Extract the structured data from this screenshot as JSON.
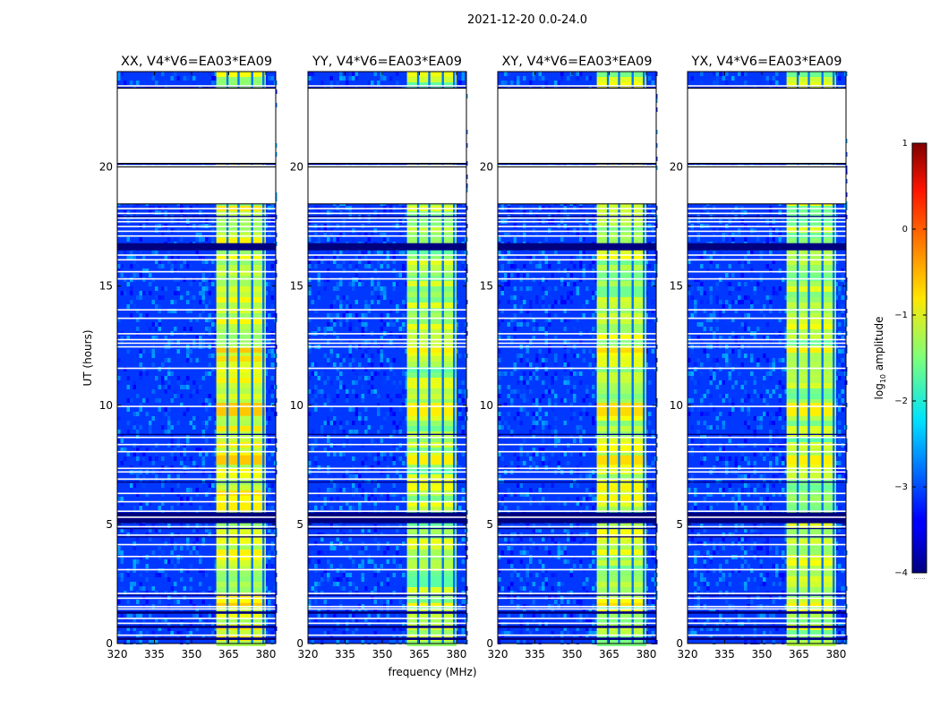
{
  "figure": {
    "suptitle": "2021-12-20 0.0-24.0",
    "xlabel": "frequency (MHz)",
    "ylabel": "UT (hours)",
    "colorbar_label": "log",
    "colorbar_sub": "10",
    "colorbar_suffix": " amplitude",
    "colorbar_dots": "......"
  },
  "chart_data": {
    "type": "heatmap",
    "panels": [
      {
        "title": "XX, V4*V6=EA03*EA09",
        "band_level": -1.1
      },
      {
        "title": "YY, V4*V6=EA03*EA09",
        "band_level": -1.3
      },
      {
        "title": "XY, V4*V6=EA03*EA09",
        "band_level": -1.2
      },
      {
        "title": "YX, V4*V6=EA03*EA09",
        "band_level": -1.3
      }
    ],
    "x_range": [
      320,
      384
    ],
    "x_ticks": [
      320,
      335,
      350,
      365,
      380
    ],
    "y_range": [
      0,
      24
    ],
    "y_ticks": [
      0,
      5,
      10,
      15,
      20
    ],
    "color_range": [
      -4,
      1
    ],
    "color_ticks": [
      1,
      0,
      -1,
      -2,
      -3,
      -4
    ],
    "colormap": "jet",
    "background_level": -3.1,
    "band_frequency_range": [
      360,
      380
    ],
    "band_columns_mhz": [
      364.5,
      369,
      374.5,
      379
    ],
    "gaps_hours": [
      [
        18.45,
        20.0
      ],
      [
        20.15,
        23.3
      ]
    ],
    "flagged_hours": [
      0.35,
      0.85,
      1.05,
      1.45,
      1.55,
      1.9,
      2.1,
      3.1,
      3.65,
      4.15,
      4.55,
      4.9,
      5.3,
      5.55,
      5.95,
      6.3,
      6.9,
      7.2,
      7.35,
      8.05,
      8.35,
      8.65,
      9.95,
      11.55,
      12.45,
      12.6,
      12.75,
      13.0,
      13.65,
      14.0,
      15.3,
      15.6,
      16.1,
      16.3,
      17.1,
      17.3,
      17.5,
      17.7,
      17.85,
      18.05,
      18.25,
      20.05,
      23.4
    ],
    "dark_hours": [
      [
        0.15,
        0.25
      ],
      [
        0.65,
        0.75
      ],
      [
        1.25,
        1.35
      ],
      [
        2.0,
        2.05
      ],
      [
        4.45,
        4.5
      ],
      [
        4.8,
        4.85
      ],
      [
        5.05,
        5.5
      ],
      [
        6.75,
        6.8
      ],
      [
        8.75,
        8.8
      ],
      [
        16.5,
        16.8
      ],
      [
        17.9,
        17.95
      ],
      [
        19.95,
        20.0
      ],
      [
        20.1,
        20.15
      ],
      [
        23.35,
        23.4
      ]
    ],
    "bright_hours": [
      [
        1.55,
        1.7
      ],
      [
        5.2,
        5.4
      ],
      [
        9.55,
        10.1
      ],
      [
        7.5,
        7.9
      ],
      [
        12.2,
        12.4
      ]
    ]
  }
}
